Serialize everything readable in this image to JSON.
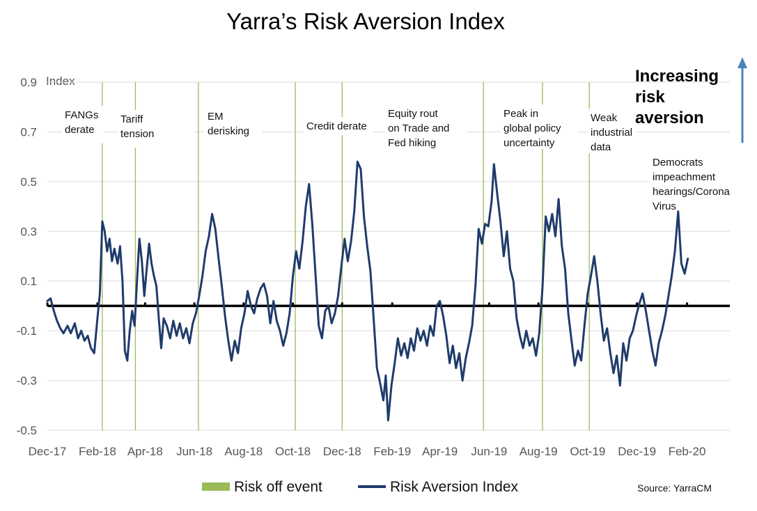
{
  "chart_data": {
    "type": "line",
    "title": "Yarra’s Risk Aversion Index",
    "ylabel": "Index",
    "xlabel": "",
    "ylim": [
      -0.5,
      0.9
    ],
    "xlim": [
      "2017-12-01",
      "2020-03-25"
    ],
    "y_ticks": [
      "0.9",
      "0.7",
      "0.5",
      "0.3",
      "0.1",
      "-0.1",
      "-0.3",
      "-0.5"
    ],
    "x_ticks": [
      {
        "label": "Dec-17",
        "date": "2017-12-01"
      },
      {
        "label": "Feb-18",
        "date": "2018-02-01"
      },
      {
        "label": "Apr-18",
        "date": "2018-04-01"
      },
      {
        "label": "Jun-18",
        "date": "2018-06-01"
      },
      {
        "label": "Aug-18",
        "date": "2018-08-01"
      },
      {
        "label": "Oct-18",
        "date": "2018-10-01"
      },
      {
        "label": "Dec-18",
        "date": "2018-12-01"
      },
      {
        "label": "Feb-19",
        "date": "2019-02-01"
      },
      {
        "label": "Apr-19",
        "date": "2019-04-01"
      },
      {
        "label": "Jun-19",
        "date": "2019-06-01"
      },
      {
        "label": "Aug-19",
        "date": "2019-08-01"
      },
      {
        "label": "Oct-19",
        "date": "2019-10-01"
      },
      {
        "label": "Dec-19",
        "date": "2019-12-01"
      },
      {
        "label": "Feb-20",
        "date": "2020-02-01"
      }
    ],
    "grid": true,
    "legend_position": "bottom",
    "baseline": 0,
    "colors": {
      "series": "#1f3b6b",
      "events": "#9bbb59",
      "baseline": "#000000",
      "grid": "#d9d9d9",
      "arrow": "#4f81bd"
    },
    "series": [
      {
        "name": "Risk Aversion Index",
        "points": [
          [
            "2017-12-01",
            0.02
          ],
          [
            "2017-12-05",
            0.03
          ],
          [
            "2017-12-09",
            -0.02
          ],
          [
            "2017-12-13",
            -0.06
          ],
          [
            "2017-12-17",
            -0.09
          ],
          [
            "2017-12-21",
            -0.11
          ],
          [
            "2017-12-26",
            -0.08
          ],
          [
            "2017-12-30",
            -0.11
          ],
          [
            "2018-01-04",
            -0.07
          ],
          [
            "2018-01-08",
            -0.13
          ],
          [
            "2018-01-12",
            -0.1
          ],
          [
            "2018-01-16",
            -0.14
          ],
          [
            "2018-01-20",
            -0.12
          ],
          [
            "2018-01-24",
            -0.17
          ],
          [
            "2018-01-28",
            -0.19
          ],
          [
            "2018-02-01",
            -0.05
          ],
          [
            "2018-02-04",
            0.05
          ],
          [
            "2018-02-07",
            0.34
          ],
          [
            "2018-02-10",
            0.3
          ],
          [
            "2018-02-13",
            0.22
          ],
          [
            "2018-02-16",
            0.27
          ],
          [
            "2018-02-19",
            0.18
          ],
          [
            "2018-02-22",
            0.23
          ],
          [
            "2018-02-26",
            0.17
          ],
          [
            "2018-03-01",
            0.24
          ],
          [
            "2018-03-04",
            0.1
          ],
          [
            "2018-03-07",
            -0.18
          ],
          [
            "2018-03-10",
            -0.22
          ],
          [
            "2018-03-13",
            -0.1
          ],
          [
            "2018-03-16",
            -0.02
          ],
          [
            "2018-03-19",
            -0.08
          ],
          [
            "2018-03-22",
            0.1
          ],
          [
            "2018-03-25",
            0.27
          ],
          [
            "2018-03-28",
            0.18
          ],
          [
            "2018-03-31",
            0.04
          ],
          [
            "2018-04-03",
            0.15
          ],
          [
            "2018-04-06",
            0.25
          ],
          [
            "2018-04-09",
            0.17
          ],
          [
            "2018-04-12",
            0.12
          ],
          [
            "2018-04-15",
            0.08
          ],
          [
            "2018-04-18",
            -0.05
          ],
          [
            "2018-04-21",
            -0.17
          ],
          [
            "2018-04-24",
            -0.05
          ],
          [
            "2018-04-28",
            -0.08
          ],
          [
            "2018-05-02",
            -0.13
          ],
          [
            "2018-05-06",
            -0.06
          ],
          [
            "2018-05-10",
            -0.12
          ],
          [
            "2018-05-14",
            -0.07
          ],
          [
            "2018-05-18",
            -0.13
          ],
          [
            "2018-05-22",
            -0.09
          ],
          [
            "2018-05-26",
            -0.15
          ],
          [
            "2018-05-30",
            -0.07
          ],
          [
            "2018-06-03",
            -0.03
          ],
          [
            "2018-06-07",
            0.04
          ],
          [
            "2018-06-11",
            0.12
          ],
          [
            "2018-06-15",
            0.22
          ],
          [
            "2018-06-19",
            0.28
          ],
          [
            "2018-06-23",
            0.37
          ],
          [
            "2018-06-27",
            0.31
          ],
          [
            "2018-07-01",
            0.19
          ],
          [
            "2018-07-05",
            0.08
          ],
          [
            "2018-07-09",
            -0.04
          ],
          [
            "2018-07-13",
            -0.14
          ],
          [
            "2018-07-17",
            -0.22
          ],
          [
            "2018-07-21",
            -0.14
          ],
          [
            "2018-07-25",
            -0.19
          ],
          [
            "2018-07-29",
            -0.09
          ],
          [
            "2018-08-02",
            -0.03
          ],
          [
            "2018-08-06",
            0.06
          ],
          [
            "2018-08-10",
            0.0
          ],
          [
            "2018-08-14",
            -0.03
          ],
          [
            "2018-08-18",
            0.03
          ],
          [
            "2018-08-22",
            0.07
          ],
          [
            "2018-08-26",
            0.09
          ],
          [
            "2018-08-30",
            0.04
          ],
          [
            "2018-09-03",
            -0.07
          ],
          [
            "2018-09-07",
            0.02
          ],
          [
            "2018-09-11",
            -0.06
          ],
          [
            "2018-09-15",
            -0.1
          ],
          [
            "2018-09-19",
            -0.16
          ],
          [
            "2018-09-23",
            -0.11
          ],
          [
            "2018-09-27",
            -0.03
          ],
          [
            "2018-10-01",
            0.12
          ],
          [
            "2018-10-05",
            0.22
          ],
          [
            "2018-10-09",
            0.15
          ],
          [
            "2018-10-13",
            0.26
          ],
          [
            "2018-10-17",
            0.4
          ],
          [
            "2018-10-21",
            0.49
          ],
          [
            "2018-10-25",
            0.33
          ],
          [
            "2018-10-29",
            0.13
          ],
          [
            "2018-11-02",
            -0.08
          ],
          [
            "2018-11-06",
            -0.13
          ],
          [
            "2018-11-10",
            -0.02
          ],
          [
            "2018-11-14",
            0.0
          ],
          [
            "2018-11-18",
            -0.07
          ],
          [
            "2018-11-22",
            -0.03
          ],
          [
            "2018-11-26",
            0.04
          ],
          [
            "2018-11-30",
            0.16
          ],
          [
            "2018-12-04",
            0.27
          ],
          [
            "2018-12-08",
            0.18
          ],
          [
            "2018-12-12",
            0.26
          ],
          [
            "2018-12-16",
            0.38
          ],
          [
            "2018-12-20",
            0.58
          ],
          [
            "2018-12-24",
            0.55
          ],
          [
            "2018-12-28",
            0.36
          ],
          [
            "2019-01-01",
            0.24
          ],
          [
            "2019-01-05",
            0.14
          ],
          [
            "2019-01-09",
            -0.05
          ],
          [
            "2019-01-13",
            -0.25
          ],
          [
            "2019-01-17",
            -0.31
          ],
          [
            "2019-01-21",
            -0.38
          ],
          [
            "2019-01-24",
            -0.28
          ],
          [
            "2019-01-27",
            -0.46
          ],
          [
            "2019-01-31",
            -0.32
          ],
          [
            "2019-02-04",
            -0.23
          ],
          [
            "2019-02-08",
            -0.13
          ],
          [
            "2019-02-12",
            -0.2
          ],
          [
            "2019-02-16",
            -0.15
          ],
          [
            "2019-02-20",
            -0.21
          ],
          [
            "2019-02-24",
            -0.13
          ],
          [
            "2019-02-28",
            -0.18
          ],
          [
            "2019-03-04",
            -0.09
          ],
          [
            "2019-03-08",
            -0.14
          ],
          [
            "2019-03-12",
            -0.1
          ],
          [
            "2019-03-16",
            -0.16
          ],
          [
            "2019-03-20",
            -0.08
          ],
          [
            "2019-03-24",
            -0.12
          ],
          [
            "2019-03-28",
            0.0
          ],
          [
            "2019-04-01",
            0.02
          ],
          [
            "2019-04-05",
            -0.04
          ],
          [
            "2019-04-09",
            -0.12
          ],
          [
            "2019-04-13",
            -0.23
          ],
          [
            "2019-04-17",
            -0.16
          ],
          [
            "2019-04-21",
            -0.25
          ],
          [
            "2019-04-25",
            -0.19
          ],
          [
            "2019-04-29",
            -0.3
          ],
          [
            "2019-05-03",
            -0.21
          ],
          [
            "2019-05-07",
            -0.15
          ],
          [
            "2019-05-11",
            -0.08
          ],
          [
            "2019-05-15",
            0.08
          ],
          [
            "2019-05-19",
            0.31
          ],
          [
            "2019-05-23",
            0.25
          ],
          [
            "2019-05-27",
            0.33
          ],
          [
            "2019-05-31",
            0.32
          ],
          [
            "2019-06-04",
            0.42
          ],
          [
            "2019-06-07",
            0.57
          ],
          [
            "2019-06-11",
            0.45
          ],
          [
            "2019-06-15",
            0.34
          ],
          [
            "2019-06-19",
            0.2
          ],
          [
            "2019-06-23",
            0.3
          ],
          [
            "2019-06-27",
            0.15
          ],
          [
            "2019-07-01",
            0.1
          ],
          [
            "2019-07-05",
            -0.05
          ],
          [
            "2019-07-09",
            -0.12
          ],
          [
            "2019-07-13",
            -0.17
          ],
          [
            "2019-07-17",
            -0.1
          ],
          [
            "2019-07-21",
            -0.16
          ],
          [
            "2019-07-25",
            -0.13
          ],
          [
            "2019-07-29",
            -0.2
          ],
          [
            "2019-08-02",
            -0.11
          ],
          [
            "2019-08-06",
            0.07
          ],
          [
            "2019-08-10",
            0.36
          ],
          [
            "2019-08-14",
            0.3
          ],
          [
            "2019-08-18",
            0.37
          ],
          [
            "2019-08-22",
            0.28
          ],
          [
            "2019-08-26",
            0.43
          ],
          [
            "2019-08-30",
            0.24
          ],
          [
            "2019-09-03",
            0.15
          ],
          [
            "2019-09-07",
            -0.03
          ],
          [
            "2019-09-11",
            -0.14
          ],
          [
            "2019-09-15",
            -0.24
          ],
          [
            "2019-09-19",
            -0.18
          ],
          [
            "2019-09-23",
            -0.22
          ],
          [
            "2019-09-27",
            -0.08
          ],
          [
            "2019-10-01",
            0.05
          ],
          [
            "2019-10-05",
            0.12
          ],
          [
            "2019-10-09",
            0.2
          ],
          [
            "2019-10-13",
            0.1
          ],
          [
            "2019-10-17",
            -0.03
          ],
          [
            "2019-10-21",
            -0.14
          ],
          [
            "2019-10-25",
            -0.09
          ],
          [
            "2019-10-29",
            -0.19
          ],
          [
            "2019-11-02",
            -0.27
          ],
          [
            "2019-11-06",
            -0.2
          ],
          [
            "2019-11-10",
            -0.32
          ],
          [
            "2019-11-14",
            -0.15
          ],
          [
            "2019-11-18",
            -0.22
          ],
          [
            "2019-11-22",
            -0.13
          ],
          [
            "2019-11-26",
            -0.1
          ],
          [
            "2019-11-30",
            -0.04
          ],
          [
            "2019-12-04",
            0.01
          ],
          [
            "2019-12-08",
            0.05
          ],
          [
            "2019-12-12",
            -0.02
          ],
          [
            "2019-12-16",
            -0.1
          ],
          [
            "2019-12-20",
            -0.18
          ],
          [
            "2019-12-24",
            -0.24
          ],
          [
            "2019-12-28",
            -0.15
          ],
          [
            "2020-01-01",
            -0.1
          ],
          [
            "2020-01-05",
            -0.04
          ],
          [
            "2020-01-09",
            0.04
          ],
          [
            "2020-01-13",
            0.12
          ],
          [
            "2020-01-17",
            0.22
          ],
          [
            "2020-01-21",
            0.38
          ],
          [
            "2020-01-25",
            0.17
          ],
          [
            "2020-01-29",
            0.13
          ],
          [
            "2020-02-02",
            0.19
          ]
        ]
      }
    ],
    "events": {
      "name": "Risk off event",
      "dates": [
        "2018-02-07",
        "2018-03-20",
        "2018-06-06",
        "2018-10-04",
        "2018-12-01",
        "2019-05-25",
        "2019-08-06",
        "2019-10-03"
      ]
    },
    "annotations": [
      {
        "lines": [
          "FANGs",
          "derate"
        ]
      },
      {
        "lines": [
          "Tariff",
          "tension"
        ]
      },
      {
        "lines": [
          "EM",
          "derisking"
        ]
      },
      {
        "lines": [
          "Credit derate"
        ]
      },
      {
        "lines": [
          "Equity rout",
          "on Trade and",
          "Fed hiking"
        ]
      },
      {
        "lines": [
          "Peak in",
          "global policy",
          "uncertainty"
        ]
      },
      {
        "lines": [
          "Weak",
          "industrial",
          "data"
        ]
      },
      {
        "lines": [
          "Democrats",
          "impeachment",
          "hearings/Corona",
          "Virus"
        ]
      }
    ],
    "callout": {
      "lines": [
        "Increasing",
        "risk",
        "aversion"
      ]
    },
    "legend": [
      {
        "label": "Risk off event",
        "kind": "swatch"
      },
      {
        "label": "Risk Aversion Index",
        "kind": "line"
      }
    ],
    "source": "Source: YarraCM"
  }
}
